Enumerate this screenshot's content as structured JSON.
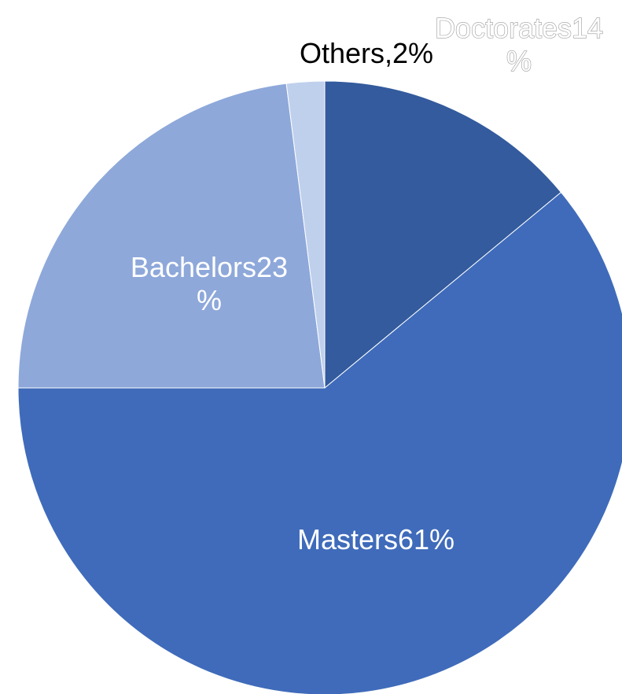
{
  "chart_data": {
    "type": "pie",
    "start_angle_deg": 0,
    "direction": "clockwise",
    "slices": [
      {
        "name": "Doctorates",
        "value": 14,
        "label_lines": [
          "Doctorates14",
          "%"
        ],
        "color": "#335B9D",
        "label_color": "#FFFFFF",
        "label_style": "outlined"
      },
      {
        "name": "Masters",
        "value": 61,
        "label_lines": [
          "Masters61%"
        ],
        "color": "#3F6BBA",
        "label_color": "#FFFFFF",
        "label_style": "plain"
      },
      {
        "name": "Bachelors",
        "value": 23,
        "label_lines": [
          "Bachelors23",
          "%"
        ],
        "color": "#8EA8DA",
        "label_color": "#FFFFFF",
        "label_style": "plain"
      },
      {
        "name": "Others",
        "value": 2,
        "label_lines": [
          "Others,2%"
        ],
        "color": "#BFD0EC",
        "label_color": "#000000",
        "label_style": "plain"
      }
    ]
  }
}
